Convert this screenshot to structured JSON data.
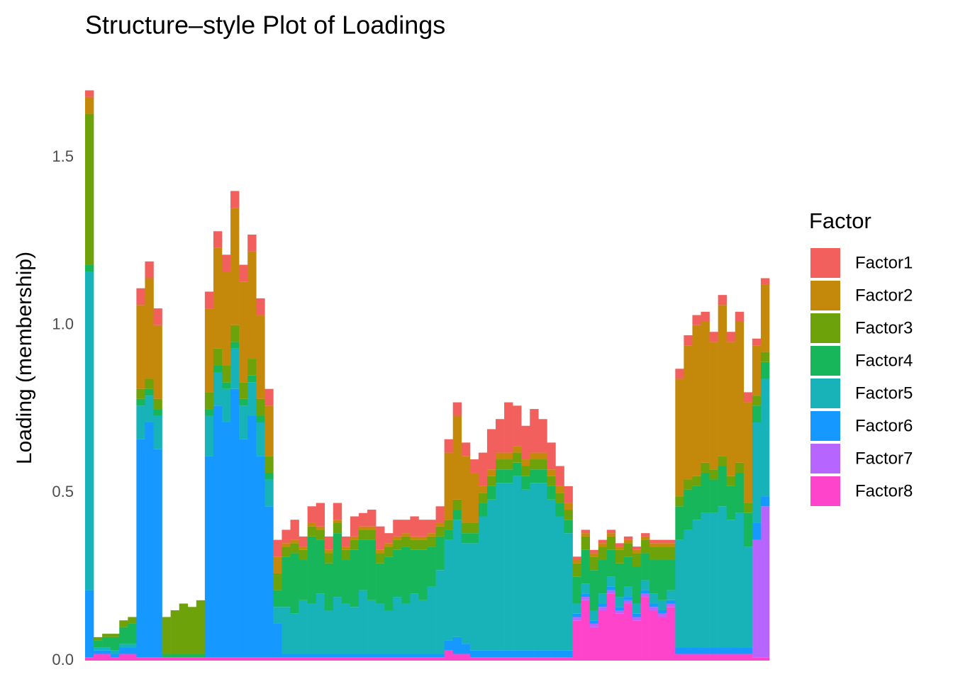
{
  "chart_data": {
    "type": "stacked_bar",
    "title": "Structure–style Plot of Loadings",
    "y_label": "Loading (membership)",
    "legend_title": "Factor",
    "legend_position": "right",
    "grid": false,
    "ylim": [
      0,
      1.72
    ],
    "yticks": [
      {
        "value": 0,
        "label": "0.0"
      },
      0.5,
      {
        "value": 1,
        "label": "1.0"
      },
      1.5
    ],
    "categories": [
      null,
      null,
      null,
      null,
      null,
      null,
      null,
      null,
      null,
      null,
      null,
      null,
      null,
      null,
      null,
      null,
      null,
      null,
      null,
      null,
      null,
      null,
      null,
      null,
      null,
      null,
      null,
      null,
      null,
      null,
      null,
      null,
      null,
      null,
      null,
      null,
      null,
      null,
      null,
      null,
      null,
      null,
      null,
      null,
      null,
      null,
      null,
      null,
      null,
      null,
      null,
      null,
      null,
      null,
      null,
      null,
      null,
      null,
      null,
      null,
      null,
      null,
      null,
      null,
      null,
      null,
      null,
      null,
      null,
      null,
      null,
      null,
      null,
      null,
      null,
      null,
      null,
      null,
      null,
      null
    ],
    "series": [
      {
        "name": "Factor1",
        "color": "#F2605E",
        "values": [
          0.02,
          0,
          0,
          0,
          0,
          0,
          0.05,
          0.05,
          0.05,
          0,
          0,
          0,
          0,
          0,
          0.05,
          0.05,
          0.05,
          0.05,
          0.05,
          0.05,
          0.05,
          0.05,
          0.05,
          0.04,
          0.06,
          0.03,
          0.05,
          0.07,
          0.04,
          0.05,
          0.03,
          0.06,
          0.04,
          0.05,
          0.07,
          0.03,
          0.05,
          0.04,
          0.06,
          0.05,
          0.04,
          0.05,
          0.04,
          0.04,
          0.04,
          0.04,
          0.1,
          0.12,
          0.1,
          0.15,
          0.12,
          0.1,
          0.13,
          0.1,
          0.08,
          0.06,
          0.05,
          0.01,
          0.01,
          0.01,
          0.01,
          0.01,
          0.01,
          0.01,
          0.01,
          0.01,
          0.01,
          0.01,
          0.01,
          0.03,
          0.03,
          0.03,
          0.03,
          0.03,
          0.03,
          0.03,
          0.03,
          0.03,
          0.02,
          0.02
        ]
      },
      {
        "name": "Factor2",
        "color": "#C4880A",
        "values": [
          0.05,
          0,
          0,
          0,
          0,
          0,
          0.25,
          0.3,
          0.22,
          0,
          0,
          0,
          0,
          0,
          0.25,
          0.3,
          0.28,
          0.35,
          0.3,
          0.32,
          0.25,
          0.15,
          0.05,
          0.01,
          0.01,
          0.01,
          0.01,
          0.01,
          0.01,
          0.01,
          0.01,
          0.01,
          0.01,
          0.01,
          0.01,
          0.01,
          0.01,
          0.01,
          0.01,
          0.01,
          0.01,
          0.01,
          0.2,
          0.25,
          0.2,
          0.15,
          0.02,
          0.02,
          0.02,
          0.02,
          0.02,
          0.02,
          0.02,
          0.02,
          0.02,
          0.02,
          0.02,
          0.01,
          0.01,
          0.01,
          0.01,
          0.01,
          0.01,
          0.01,
          0.01,
          0.01,
          0.01,
          0.01,
          0.01,
          0.35,
          0.4,
          0.45,
          0.42,
          0.38,
          0.45,
          0.4,
          0.42,
          0.3,
          0.15,
          0.2
        ]
      },
      {
        "name": "Factor3",
        "color": "#6DA20A",
        "values": [
          0.45,
          0.01,
          0.01,
          0.01,
          0.02,
          0.02,
          0.03,
          0.03,
          0.03,
          0.11,
          0.13,
          0.15,
          0.14,
          0.16,
          0.05,
          0.05,
          0.05,
          0.05,
          0.05,
          0.05,
          0.05,
          0.05,
          0.05,
          0.03,
          0.03,
          0.03,
          0.03,
          0.03,
          0.03,
          0.03,
          0.03,
          0.03,
          0.03,
          0.03,
          0.03,
          0.03,
          0.03,
          0.03,
          0.03,
          0.03,
          0.03,
          0.03,
          0.03,
          0.03,
          0.03,
          0.03,
          0.03,
          0.03,
          0.03,
          0.03,
          0.03,
          0.03,
          0.03,
          0.03,
          0.03,
          0.03,
          0.03,
          0.04,
          0.04,
          0.04,
          0.04,
          0.04,
          0.04,
          0.04,
          0.04,
          0.04,
          0.04,
          0.04,
          0.04,
          0.03,
          0.03,
          0.03,
          0.03,
          0.03,
          0.03,
          0.03,
          0.03,
          0.03,
          0.03,
          0.03
        ]
      },
      {
        "name": "Factor4",
        "color": "#17B65A",
        "values": [
          0.02,
          0.02,
          0.03,
          0.04,
          0.05,
          0.06,
          0.02,
          0.02,
          0.02,
          0.01,
          0.01,
          0.01,
          0.01,
          0.01,
          0.02,
          0.02,
          0.02,
          0.02,
          0.02,
          0.02,
          0.02,
          0.02,
          0.05,
          0.15,
          0.18,
          0.12,
          0.2,
          0.16,
          0.14,
          0.19,
          0.13,
          0.17,
          0.15,
          0.18,
          0.12,
          0.16,
          0.14,
          0.17,
          0.13,
          0.15,
          0.12,
          0.1,
          0.03,
          0.03,
          0.03,
          0.03,
          0.04,
          0.04,
          0.04,
          0.04,
          0.04,
          0.04,
          0.04,
          0.04,
          0.04,
          0.04,
          0.04,
          0.08,
          0.1,
          0.12,
          0.1,
          0.08,
          0.1,
          0.09,
          0.11,
          0.08,
          0.1,
          0.12,
          0.09,
          0.1,
          0.12,
          0.1,
          0.12,
          0.1,
          0.12,
          0.1,
          0.12,
          0.1,
          0.05,
          0.05
        ]
      },
      {
        "name": "Factor5",
        "color": "#17B3B8",
        "values": [
          0.95,
          0.01,
          0.01,
          0.01,
          0.01,
          0.01,
          0.1,
          0.08,
          0.1,
          0,
          0,
          0,
          0,
          0,
          0.12,
          0.1,
          0.1,
          0.12,
          0.1,
          0.1,
          0.1,
          0.08,
          0.05,
          0.14,
          0.12,
          0.16,
          0.15,
          0.18,
          0.13,
          0.17,
          0.15,
          0.14,
          0.19,
          0.16,
          0.15,
          0.13,
          0.17,
          0.15,
          0.18,
          0.16,
          0.2,
          0.25,
          0.3,
          0.35,
          0.3,
          0.32,
          0.4,
          0.45,
          0.5,
          0.5,
          0.52,
          0.48,
          0.5,
          0.5,
          0.45,
          0.4,
          0.35,
          0.03,
          0.03,
          0.03,
          0.03,
          0.03,
          0.03,
          0.03,
          0.03,
          0.03,
          0.03,
          0.03,
          0.03,
          0.32,
          0.35,
          0.38,
          0.4,
          0.4,
          0.42,
          0.38,
          0.4,
          0.3,
          0.3,
          0.35
        ]
      },
      {
        "name": "Factor6",
        "color": "#1598FF",
        "values": [
          0.2,
          0.01,
          0.01,
          0.01,
          0.02,
          0.02,
          0.65,
          0.7,
          0.62,
          0,
          0,
          0,
          0,
          0,
          0.6,
          0.75,
          0.7,
          0.8,
          0.65,
          0.72,
          0.6,
          0.45,
          0.1,
          0.01,
          0.01,
          0.01,
          0.01,
          0.01,
          0.01,
          0.01,
          0.01,
          0.01,
          0.01,
          0.01,
          0.01,
          0.01,
          0.01,
          0.01,
          0.01,
          0.01,
          0.01,
          0.01,
          0.03,
          0.05,
          0.03,
          0.02,
          0.02,
          0.02,
          0.02,
          0.02,
          0.02,
          0.02,
          0.02,
          0.02,
          0.02,
          0.02,
          0.02,
          0.01,
          0.01,
          0.01,
          0.01,
          0.01,
          0.01,
          0.01,
          0.01,
          0.01,
          0.01,
          0.01,
          0.01,
          0.02,
          0.02,
          0.02,
          0.02,
          0.02,
          0.02,
          0.02,
          0.02,
          0.02,
          0.05,
          0.03
        ]
      },
      {
        "name": "Factor7",
        "color": "#B666FF",
        "values": [
          0,
          0,
          0,
          0,
          0,
          0,
          0,
          0,
          0,
          0,
          0,
          0,
          0,
          0,
          0,
          0,
          0,
          0,
          0,
          0,
          0,
          0,
          0,
          0,
          0,
          0,
          0,
          0,
          0,
          0,
          0,
          0,
          0,
          0,
          0,
          0,
          0,
          0,
          0,
          0,
          0,
          0,
          0,
          0,
          0,
          0,
          0,
          0,
          0,
          0,
          0,
          0,
          0,
          0,
          0,
          0,
          0,
          0.01,
          0.01,
          0.01,
          0.01,
          0.01,
          0.01,
          0.01,
          0.01,
          0.01,
          0.01,
          0.01,
          0.01,
          0,
          0,
          0,
          0,
          0,
          0,
          0,
          0,
          0,
          0.35,
          0.45
        ]
      },
      {
        "name": "Factor8",
        "color": "#FF44CC",
        "values": [
          0.01,
          0.02,
          0.02,
          0.01,
          0.02,
          0.02,
          0.01,
          0.01,
          0.01,
          0.01,
          0.01,
          0.01,
          0.01,
          0.01,
          0.01,
          0.01,
          0.01,
          0.01,
          0.01,
          0.01,
          0.01,
          0.01,
          0.01,
          0.01,
          0.01,
          0.01,
          0.01,
          0.01,
          0.01,
          0.01,
          0.01,
          0.01,
          0.01,
          0.01,
          0.01,
          0.01,
          0.01,
          0.01,
          0.01,
          0.01,
          0.01,
          0.01,
          0.03,
          0.02,
          0.02,
          0.01,
          0.01,
          0.01,
          0.01,
          0.01,
          0.01,
          0.01,
          0.01,
          0.01,
          0.01,
          0.01,
          0.01,
          0.12,
          0.18,
          0.1,
          0.15,
          0.2,
          0.14,
          0.17,
          0.12,
          0.19,
          0.15,
          0.13,
          0.16,
          0.02,
          0.02,
          0.02,
          0.02,
          0.02,
          0.02,
          0.02,
          0.02,
          0.02,
          0.01,
          0.01
        ]
      }
    ]
  }
}
